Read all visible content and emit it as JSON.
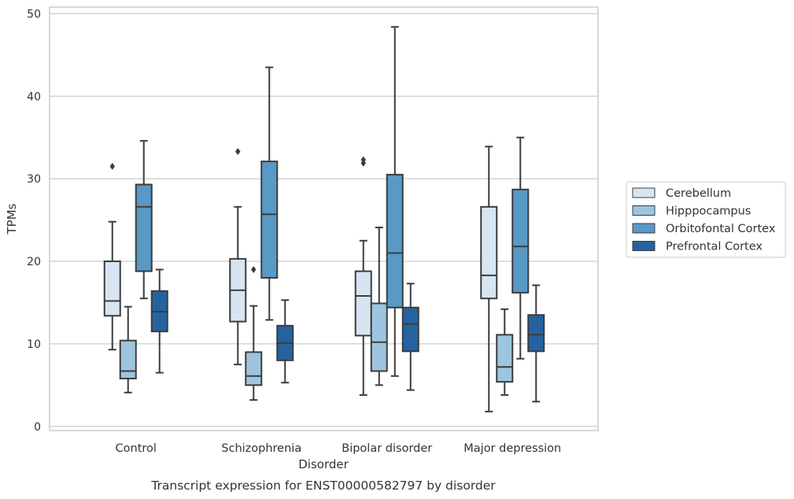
{
  "chart_data": {
    "type": "box",
    "title": "",
    "caption": "Transcript expression for ENST00000582797 by disorder",
    "xlabel": "Disorder",
    "ylabel": "TPMs",
    "ylim": [
      -0.5,
      50.8
    ],
    "yticks": [
      0,
      10,
      20,
      30,
      40,
      50
    ],
    "grid": "horizontal",
    "legend_position": "right",
    "categories": [
      "Control",
      "Schizophrenia",
      "Bipolar disorder",
      "Major depression"
    ],
    "series": [
      {
        "name": "Cerebellum",
        "color": "#d7e5f3",
        "boxes": [
          {
            "whisker_low": 9.3,
            "q1": 13.4,
            "median": 15.2,
            "q3": 20.0,
            "whisker_high": 24.8,
            "outliers": [
              31.5
            ]
          },
          {
            "whisker_low": 7.5,
            "q1": 12.7,
            "median": 16.5,
            "q3": 20.3,
            "whisker_high": 26.6,
            "outliers": [
              33.3
            ]
          },
          {
            "whisker_low": 3.8,
            "q1": 11.0,
            "median": 15.8,
            "q3": 18.8,
            "whisker_high": 22.5,
            "outliers": [
              31.9,
              32.3
            ]
          },
          {
            "whisker_low": 1.8,
            "q1": 15.5,
            "median": 18.3,
            "q3": 26.6,
            "whisker_high": 33.9,
            "outliers": []
          }
        ]
      },
      {
        "name": "Hipppocampus",
        "color": "#9ec5e0",
        "boxes": [
          {
            "whisker_low": 4.1,
            "q1": 5.8,
            "median": 6.7,
            "q3": 10.4,
            "whisker_high": 14.5,
            "outliers": []
          },
          {
            "whisker_low": 3.2,
            "q1": 5.0,
            "median": 6.1,
            "q3": 9.0,
            "whisker_high": 14.6,
            "outliers": [
              19.0
            ]
          },
          {
            "whisker_low": 5.0,
            "q1": 6.7,
            "median": 10.2,
            "q3": 14.9,
            "whisker_high": 24.1,
            "outliers": []
          },
          {
            "whisker_low": 3.8,
            "q1": 5.4,
            "median": 7.2,
            "q3": 11.1,
            "whisker_high": 14.2,
            "outliers": []
          }
        ]
      },
      {
        "name": "Orbitofontal Cortex",
        "color": "#5899c5",
        "boxes": [
          {
            "whisker_low": 15.5,
            "q1": 18.8,
            "median": 26.6,
            "q3": 29.3,
            "whisker_high": 34.6,
            "outliers": []
          },
          {
            "whisker_low": 12.9,
            "q1": 18.0,
            "median": 25.7,
            "q3": 32.1,
            "whisker_high": 43.5,
            "outliers": []
          },
          {
            "whisker_low": 6.1,
            "q1": 14.4,
            "median": 21.0,
            "q3": 30.5,
            "whisker_high": 48.4,
            "outliers": []
          },
          {
            "whisker_low": 8.2,
            "q1": 16.2,
            "median": 21.8,
            "q3": 28.7,
            "whisker_high": 35.0,
            "outliers": []
          }
        ]
      },
      {
        "name": "Prefrontal Cortex",
        "color": "#2563a0",
        "boxes": [
          {
            "whisker_low": 6.5,
            "q1": 11.5,
            "median": 13.9,
            "q3": 16.4,
            "whisker_high": 19.0,
            "outliers": []
          },
          {
            "whisker_low": 5.3,
            "q1": 8.0,
            "median": 10.1,
            "q3": 12.2,
            "whisker_high": 15.3,
            "outliers": []
          },
          {
            "whisker_low": 4.4,
            "q1": 9.1,
            "median": 12.4,
            "q3": 14.4,
            "whisker_high": 17.3,
            "outliers": []
          },
          {
            "whisker_low": 3.0,
            "q1": 9.1,
            "median": 11.1,
            "q3": 13.5,
            "whisker_high": 17.1,
            "outliers": []
          }
        ]
      }
    ],
    "colors": {
      "grid": "#cccccc",
      "frame": "#cccccc",
      "box_edge": "#3c3c3c",
      "text": "#333333"
    }
  }
}
